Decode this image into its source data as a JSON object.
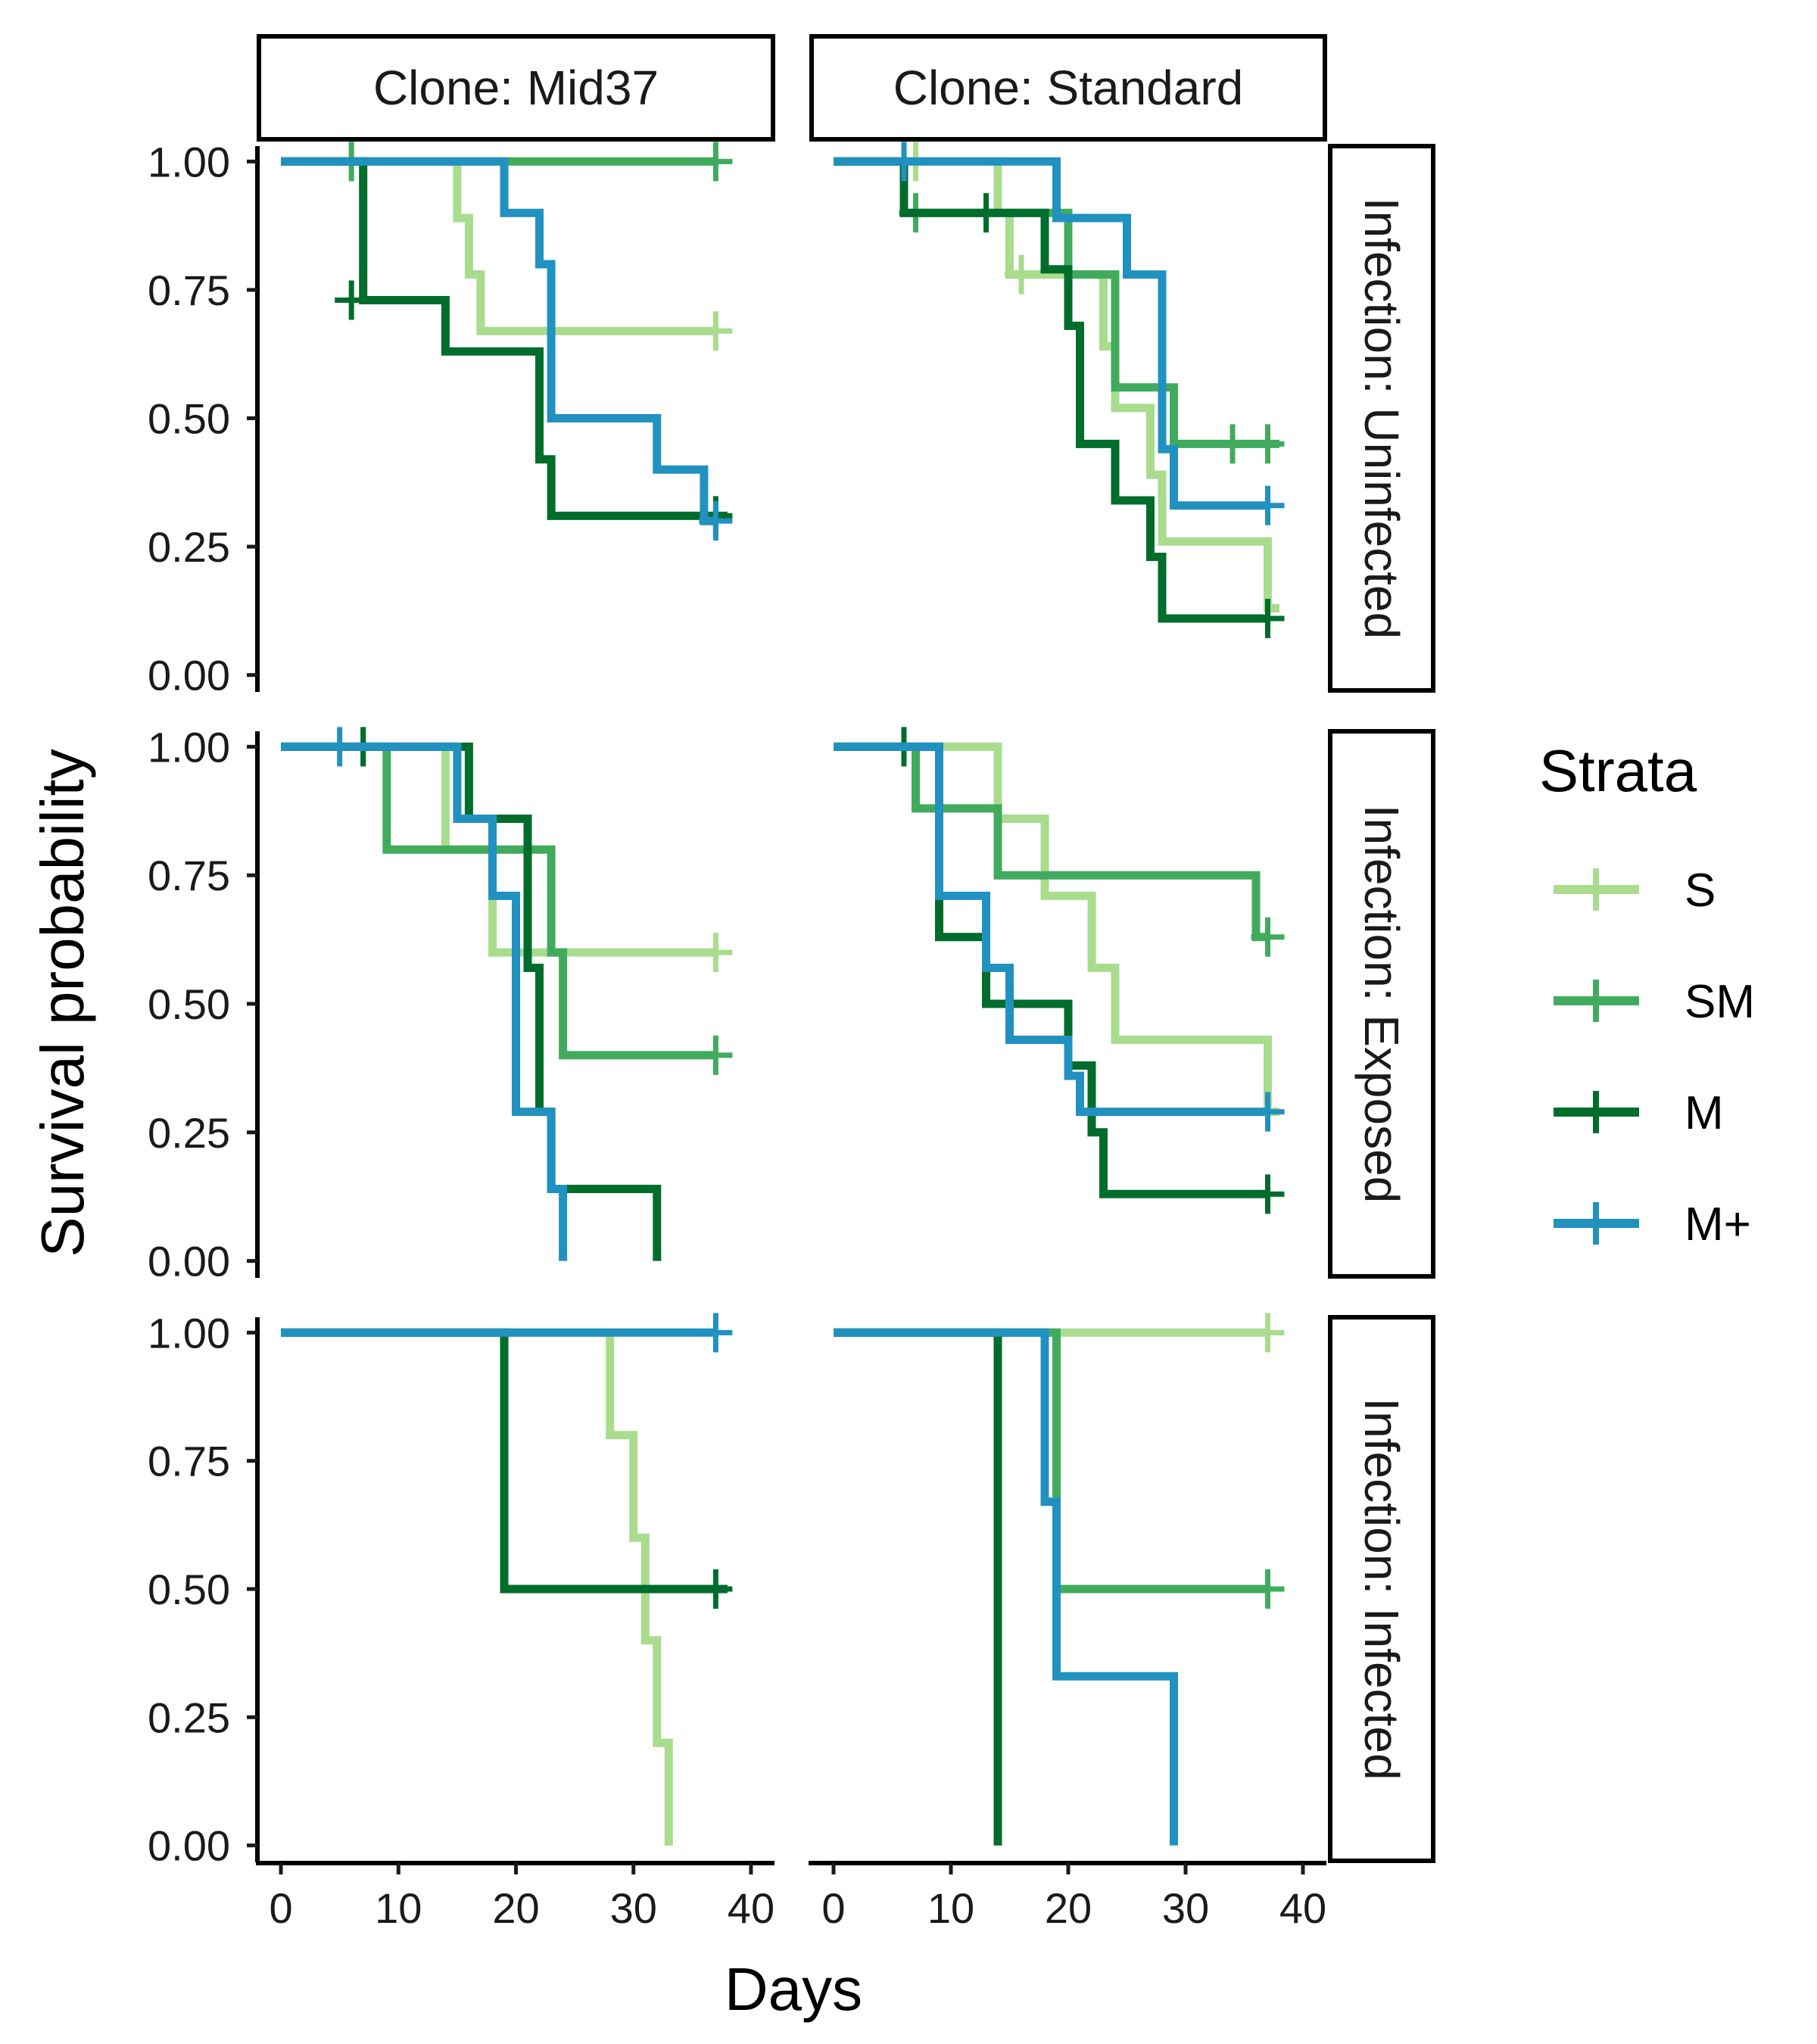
{
  "chart_data": {
    "type": "line",
    "step": true,
    "xlabel": "Days",
    "ylabel": "Survival probability",
    "xlim": [
      -2,
      42
    ],
    "ylim": [
      -0.03,
      1.03
    ],
    "xticks": [
      0,
      10,
      20,
      30,
      40
    ],
    "yticks": [
      0,
      0.25,
      0.5,
      0.75,
      1
    ],
    "ytick_labels": [
      "0.00",
      "0.25",
      "0.50",
      "0.75",
      "1.00"
    ],
    "grid": false,
    "legend": {
      "title": "Strata",
      "position": "right",
      "entries": [
        {
          "key": "S",
          "label": "S",
          "color": "#a9dc8d"
        },
        {
          "key": "SM",
          "label": "SM",
          "color": "#41ab5d"
        },
        {
          "key": "M",
          "label": "M",
          "color": "#006d2c"
        },
        {
          "key": "M+",
          "label": "M+",
          "color": "#2191c0"
        }
      ]
    },
    "columns": [
      "Clone: Mid37",
      "Clone: Standard"
    ],
    "rows": [
      "Infection: Uninfected",
      "Infection: Exposed",
      "Infection: Infected"
    ],
    "panels": [
      {
        "col": 0,
        "row": 0,
        "series": [
          {
            "key": "S",
            "steps": [
              [
                0,
                1
              ],
              [
                15,
                0.89
              ],
              [
                16,
                0.78
              ],
              [
                17,
                0.67
              ],
              [
                37,
                0.67
              ]
            ],
            "censor": [
              [
                37,
                0.67
              ]
            ]
          },
          {
            "key": "SM",
            "steps": [
              [
                0,
                1
              ],
              [
                37,
                1
              ]
            ],
            "censor": [
              [
                6,
                1
              ],
              [
                37,
                1
              ]
            ]
          },
          {
            "key": "M",
            "steps": [
              [
                0,
                1
              ],
              [
                7,
                0.73
              ],
              [
                14,
                0.63
              ],
              [
                22,
                0.42
              ],
              [
                23,
                0.31
              ],
              [
                38,
                0.31
              ]
            ],
            "censor": [
              [
                6,
                0.73
              ],
              [
                37,
                0.31
              ]
            ]
          },
          {
            "key": "M+",
            "steps": [
              [
                0,
                1
              ],
              [
                19,
                0.9
              ],
              [
                22,
                0.8
              ],
              [
                23,
                0.5
              ],
              [
                32,
                0.4
              ],
              [
                36,
                0.3
              ],
              [
                37,
                0.3
              ]
            ],
            "censor": [
              [
                37,
                0.3
              ]
            ]
          }
        ]
      },
      {
        "col": 1,
        "row": 0,
        "series": [
          {
            "key": "S",
            "steps": [
              [
                0,
                1
              ],
              [
                14,
                0.9
              ],
              [
                15,
                0.78
              ],
              [
                20,
                0.78
              ],
              [
                23,
                0.64
              ],
              [
                24,
                0.52
              ],
              [
                27,
                0.39
              ],
              [
                28,
                0.26
              ],
              [
                37,
                0.13
              ],
              [
                38,
                0.13
              ]
            ],
            "censor": [
              [
                7,
                1
              ],
              [
                16,
                0.78
              ]
            ]
          },
          {
            "key": "SM",
            "steps": [
              [
                0,
                1
              ],
              [
                6,
                0.9
              ],
              [
                20,
                0.78
              ],
              [
                24,
                0.56
              ],
              [
                29,
                0.45
              ],
              [
                38,
                0.45
              ]
            ],
            "censor": [
              [
                7,
                0.9
              ],
              [
                34,
                0.45
              ],
              [
                37,
                0.45
              ]
            ]
          },
          {
            "key": "M",
            "steps": [
              [
                0,
                1
              ],
              [
                6,
                0.9
              ],
              [
                18,
                0.79
              ],
              [
                20,
                0.68
              ],
              [
                21,
                0.45
              ],
              [
                24,
                0.34
              ],
              [
                27,
                0.23
              ],
              [
                28,
                0.11
              ],
              [
                37,
                0.11
              ]
            ],
            "censor": [
              [
                13,
                0.9
              ],
              [
                37,
                0.11
              ]
            ]
          },
          {
            "key": "M+",
            "steps": [
              [
                0,
                1
              ],
              [
                19,
                0.89
              ],
              [
                25,
                0.78
              ],
              [
                28,
                0.44
              ],
              [
                29,
                0.33
              ],
              [
                37,
                0.33
              ]
            ],
            "censor": [
              [
                6,
                1
              ],
              [
                37,
                0.33
              ]
            ]
          }
        ]
      },
      {
        "col": 0,
        "row": 1,
        "series": [
          {
            "key": "S",
            "steps": [
              [
                0,
                1
              ],
              [
                14,
                0.8
              ],
              [
                18,
                0.6
              ],
              [
                37,
                0.6
              ]
            ],
            "censor": [
              [
                37,
                0.6
              ]
            ]
          },
          {
            "key": "SM",
            "steps": [
              [
                0,
                1
              ],
              [
                9,
                0.8
              ],
              [
                23,
                0.6
              ],
              [
                24,
                0.4
              ],
              [
                37,
                0.4
              ]
            ],
            "censor": [
              [
                7,
                1
              ],
              [
                37,
                0.4
              ]
            ]
          },
          {
            "key": "M",
            "steps": [
              [
                0,
                1
              ],
              [
                16,
                0.86
              ],
              [
                21,
                0.57
              ],
              [
                22,
                0.29
              ],
              [
                23,
                0.14
              ],
              [
                32,
                0
              ]
            ],
            "censor": [
              [
                7,
                1
              ]
            ]
          },
          {
            "key": "M+",
            "steps": [
              [
                0,
                1
              ],
              [
                15,
                0.86
              ],
              [
                18,
                0.71
              ],
              [
                20,
                0.29
              ],
              [
                23,
                0.14
              ],
              [
                24,
                0
              ]
            ],
            "censor": [
              [
                5,
                1
              ]
            ]
          }
        ]
      },
      {
        "col": 1,
        "row": 1,
        "series": [
          {
            "key": "S",
            "steps": [
              [
                0,
                1
              ],
              [
                14,
                0.86
              ],
              [
                18,
                0.71
              ],
              [
                22,
                0.57
              ],
              [
                24,
                0.43
              ],
              [
                37,
                0.29
              ],
              [
                38,
                0.29
              ]
            ],
            "censor": []
          },
          {
            "key": "SM",
            "steps": [
              [
                0,
                1
              ],
              [
                7,
                0.88
              ],
              [
                14,
                0.75
              ],
              [
                36,
                0.63
              ],
              [
                37,
                0.63
              ]
            ],
            "censor": [
              [
                6,
                1
              ],
              [
                37,
                0.63
              ]
            ]
          },
          {
            "key": "M",
            "steps": [
              [
                0,
                1
              ],
              [
                9,
                0.63
              ],
              [
                13,
                0.5
              ],
              [
                20,
                0.38
              ],
              [
                22,
                0.25
              ],
              [
                23,
                0.13
              ],
              [
                37,
                0.13
              ]
            ],
            "censor": [
              [
                6,
                1
              ],
              [
                37,
                0.13
              ]
            ]
          },
          {
            "key": "M+",
            "steps": [
              [
                0,
                1
              ],
              [
                9,
                0.71
              ],
              [
                13,
                0.57
              ],
              [
                15,
                0.43
              ],
              [
                20,
                0.36
              ],
              [
                21,
                0.29
              ],
              [
                37,
                0.29
              ]
            ],
            "censor": [
              [
                37,
                0.29
              ]
            ]
          }
        ]
      },
      {
        "col": 0,
        "row": 2,
        "series": [
          {
            "key": "S",
            "steps": [
              [
                0,
                1
              ],
              [
                28,
                0.8
              ],
              [
                30,
                0.6
              ],
              [
                31,
                0.4
              ],
              [
                32,
                0.2
              ],
              [
                33,
                0
              ]
            ],
            "censor": []
          },
          {
            "key": "M",
            "steps": [
              [
                0,
                1
              ],
              [
                19,
                0.5
              ],
              [
                38,
                0.5
              ]
            ],
            "censor": [
              [
                37,
                0.5
              ]
            ]
          },
          {
            "key": "M+",
            "steps": [
              [
                0,
                1
              ],
              [
                37,
                1
              ]
            ],
            "censor": [
              [
                37,
                1
              ]
            ]
          }
        ]
      },
      {
        "col": 1,
        "row": 2,
        "series": [
          {
            "key": "S",
            "steps": [
              [
                0,
                1
              ],
              [
                37,
                1
              ]
            ],
            "censor": [
              [
                37,
                1
              ]
            ]
          },
          {
            "key": "SM",
            "steps": [
              [
                0,
                1
              ],
              [
                19,
                0.5
              ],
              [
                37,
                0.5
              ]
            ],
            "censor": [
              [
                37,
                0.5
              ]
            ]
          },
          {
            "key": "M",
            "steps": [
              [
                0,
                1
              ],
              [
                14,
                0
              ]
            ],
            "censor": []
          },
          {
            "key": "M+",
            "steps": [
              [
                0,
                1
              ],
              [
                18,
                0.67
              ],
              [
                19,
                0.33
              ],
              [
                29,
                0
              ]
            ],
            "censor": []
          }
        ]
      }
    ]
  }
}
